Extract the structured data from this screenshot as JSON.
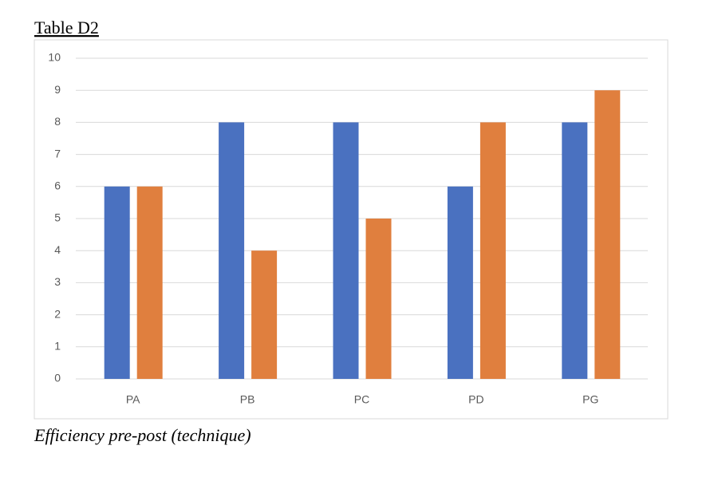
{
  "chart_data": {
    "type": "bar",
    "title": "Table D2",
    "caption": "Efficiency pre-post (technique)",
    "categories": [
      "PA",
      "PB",
      "PC",
      "PD",
      "PG"
    ],
    "series": [
      {
        "color": "#4a71c0",
        "values": [
          6,
          8,
          8,
          6,
          8
        ]
      },
      {
        "color": "#e07f3e",
        "values": [
          6,
          4,
          5,
          8,
          9
        ]
      }
    ],
    "ylim": [
      0,
      10
    ],
    "yticks": [
      0,
      1,
      2,
      3,
      4,
      5,
      6,
      7,
      8,
      9,
      10
    ],
    "grid": true
  }
}
